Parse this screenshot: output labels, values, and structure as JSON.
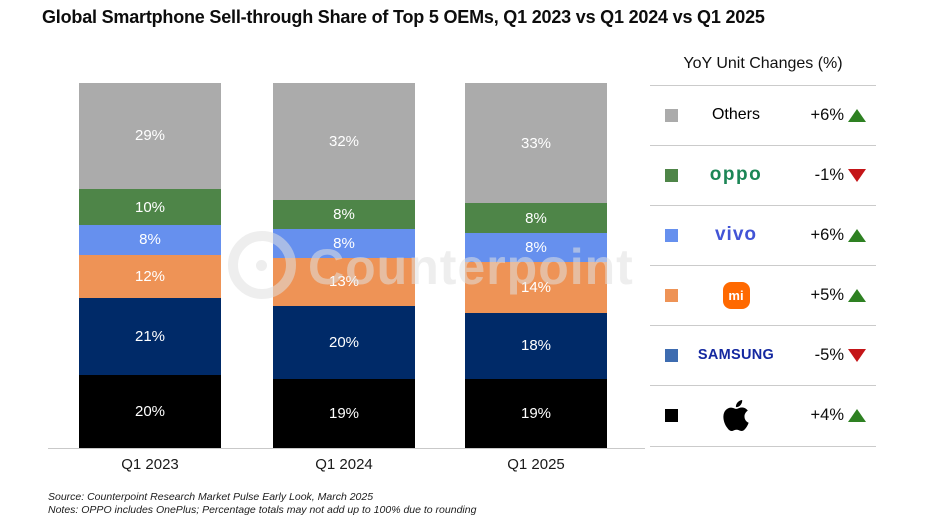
{
  "title": "Global Smartphone Sell-through Share of Top 5 OEMs, Q1 2023 vs Q1 2024 vs Q1 2025",
  "watermark": {
    "text": "Counterpoint"
  },
  "chart_data": {
    "type": "bar",
    "stacked": true,
    "unit": "%",
    "categories": [
      "Q1 2023",
      "Q1 2024",
      "Q1 2025"
    ],
    "series": [
      {
        "name": "Apple",
        "color": "#000000",
        "values": [
          20,
          19,
          19
        ]
      },
      {
        "name": "Samsung",
        "color": "#002a68",
        "values": [
          21,
          20,
          18
        ]
      },
      {
        "name": "Xiaomi",
        "color": "#ee9356",
        "values": [
          12,
          13,
          14
        ]
      },
      {
        "name": "vivo",
        "color": "#6690ee",
        "values": [
          8,
          8,
          8
        ]
      },
      {
        "name": "OPPO",
        "color": "#4e8548",
        "values": [
          10,
          8,
          8
        ]
      },
      {
        "name": "Others",
        "color": "#ababab",
        "values": [
          29,
          32,
          33
        ]
      }
    ],
    "title": "Global Smartphone Sell-through Share of Top 5 OEMs, Q1 2023 vs Q1 2024 vs Q1 2025",
    "xlabel": "",
    "ylabel": "",
    "ylim": [
      0,
      100
    ],
    "grid": false,
    "legend_position": "right"
  },
  "legend": {
    "header": "YoY Unit Changes (%)",
    "rows": [
      {
        "name": "Others",
        "name_display": "Others",
        "swatch": "#ababab",
        "logo_color": "#000000",
        "change": "+6%",
        "direction": "up"
      },
      {
        "name": "OPPO",
        "name_display": "oppo",
        "swatch": "#4e8548",
        "logo_color": "#1c8656",
        "change": "-1%",
        "direction": "down"
      },
      {
        "name": "vivo",
        "name_display": "vivo",
        "swatch": "#6690ee",
        "logo_color": "#4254d6",
        "change": "+6%",
        "direction": "up"
      },
      {
        "name": "Xiaomi",
        "name_display": "mi",
        "swatch": "#ee9356",
        "logo_color": "#ff6900",
        "change": "+5%",
        "direction": "up"
      },
      {
        "name": "Samsung",
        "name_display": "SAMSUNG",
        "swatch": "#3e6cb0",
        "logo_color": "#1428a0",
        "change": "-5%",
        "direction": "down"
      },
      {
        "name": "Apple",
        "name_display": "",
        "swatch": "#000000",
        "logo_color": "#000000",
        "change": "+4%",
        "direction": "up"
      }
    ]
  },
  "colors": {
    "up_triangle": "#2e8122",
    "down_triangle": "#c41518",
    "axis_line": "#c9c9c9",
    "divider": "#cbcbcb",
    "watermark": "#e0e0e0"
  },
  "footer": {
    "source": "Source: Counterpoint Research Market Pulse Early Look, March 2025",
    "notes": "Notes: OPPO includes OnePlus; Percentage totals may not add up to 100% due to rounding"
  }
}
